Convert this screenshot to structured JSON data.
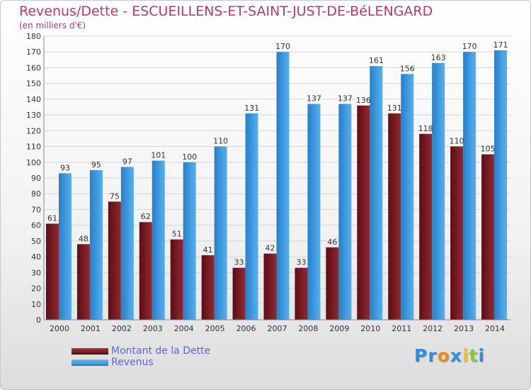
{
  "header": {
    "title": "Revenus/Dette - ESCUEILLENS-ET-SAINT-JUST-DE-BéLENGARD",
    "subtitle": "(en milliers d'€)"
  },
  "legend": {
    "items": [
      {
        "label": "Montant de la Dette",
        "color": "#7a1c24"
      },
      {
        "label": "Revenus",
        "color": "#3f9be0"
      }
    ]
  },
  "brand": {
    "letters": [
      "P",
      "r",
      "o",
      "x",
      "i",
      "t",
      "i"
    ],
    "colors": [
      "#2f8fd8",
      "#2f8fd8",
      "#f08a1c",
      "#2f8fd8",
      "#f2c21a",
      "#8cc63f",
      "#2f8fd8"
    ]
  },
  "chart_data": {
    "type": "bar",
    "categories": [
      "2000",
      "2001",
      "2002",
      "2003",
      "2004",
      "2005",
      "2006",
      "2007",
      "2008",
      "2009",
      "2010",
      "2011",
      "2012",
      "2013",
      "2014"
    ],
    "series": [
      {
        "name": "Montant de la Dette",
        "color": "#7a1c24",
        "values": [
          61,
          48,
          75,
          62,
          51,
          41,
          33,
          42,
          33,
          46,
          136,
          131,
          118,
          110,
          105
        ]
      },
      {
        "name": "Revenus",
        "color": "#3f9be0",
        "values": [
          93,
          95,
          97,
          101,
          100,
          110,
          131,
          170,
          137,
          137,
          161,
          156,
          163,
          170,
          171
        ]
      }
    ],
    "ylim": [
      0,
      180
    ],
    "ytick_step": 10,
    "grid": true,
    "legend_position": "bottom-left"
  }
}
